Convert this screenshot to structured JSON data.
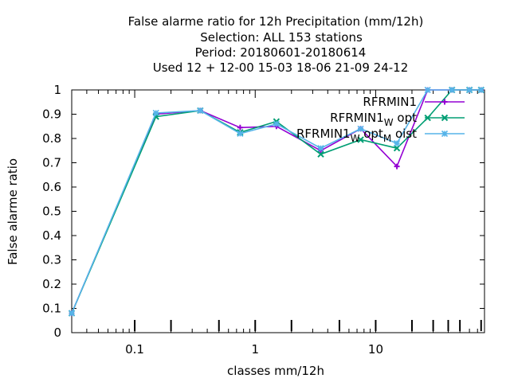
{
  "chart_data": {
    "type": "line",
    "title_lines": [
      "False alarme ratio  for 12h Precipitation (mm/12h)",
      "Selection: ALL    153 stations",
      "Period: 20180601-20180614",
      "Used  12 + 12-00 15-03 18-06 21-09 24-12"
    ],
    "xlabel": "classes mm/12h",
    "ylabel": "False alarme ratio",
    "x_scale": "log",
    "xlim": [
      0.03,
      80
    ],
    "ylim": [
      0,
      1
    ],
    "x_tick_labels": [
      "0.1",
      "1",
      "10"
    ],
    "y_tick_labels": [
      "0",
      "0.1",
      "0.2",
      "0.3",
      "0.4",
      "0.5",
      "0.6",
      "0.7",
      "0.8",
      "0.9",
      "1"
    ],
    "class_bounds_ticks": [
      0.1,
      0.2,
      0.5,
      1,
      2,
      5,
      10,
      20,
      30,
      40,
      50,
      75
    ],
    "legend_position": "top-right",
    "series": [
      {
        "name": "RFRMIN1",
        "legend_main": "RFRMIN1",
        "legend_sub": "",
        "legend_tail": "",
        "color": "#9400d3",
        "marker": "plus",
        "x": [
          0.03,
          0.15,
          0.35,
          0.75,
          1.5,
          3.5,
          7.5,
          15,
          27,
          43,
          60,
          75
        ],
        "y": [
          0.08,
          0.9,
          0.915,
          0.845,
          0.85,
          0.75,
          0.84,
          0.685,
          1.0,
          1.0,
          1.0,
          1.0
        ]
      },
      {
        "name": "RFRMIN1_W opt",
        "legend_main": "RFRMIN1",
        "legend_sub": "W",
        "legend_tail": "opt",
        "color": "#009e73",
        "marker": "x",
        "x": [
          0.03,
          0.15,
          0.35,
          0.75,
          1.5,
          3.5,
          7.5,
          15,
          27,
          43,
          60,
          75
        ],
        "y": [
          0.08,
          0.89,
          0.915,
          0.825,
          0.87,
          0.735,
          0.795,
          0.76,
          0.885,
          1.0,
          1.0,
          1.0
        ]
      },
      {
        "name": "RFRMIN1_W opt_M oist",
        "legend_main": "RFRMIN1",
        "legend_sub": "W",
        "legend_tail": "opt",
        "legend_sub2": "M",
        "legend_tail2": "oist",
        "color": "#56b4e9",
        "marker": "star",
        "x": [
          0.03,
          0.15,
          0.35,
          0.75,
          1.5,
          3.5,
          7.5,
          15,
          27,
          43,
          60,
          75
        ],
        "y": [
          0.08,
          0.905,
          0.915,
          0.82,
          0.86,
          0.76,
          0.84,
          0.78,
          1.0,
          1.0,
          1.0,
          1.0
        ]
      }
    ]
  }
}
